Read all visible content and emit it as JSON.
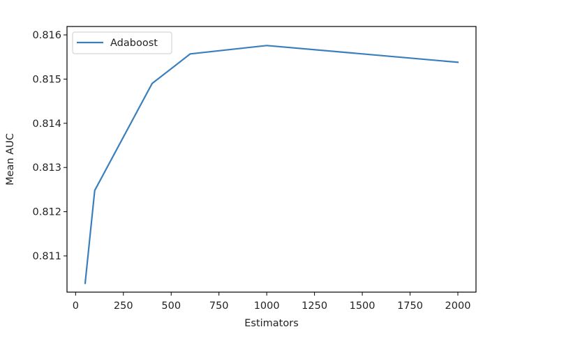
{
  "chart_data": {
    "type": "line",
    "title": "",
    "xlabel": "Estimators",
    "ylabel": "Mean AUC",
    "xlim": [
      -45,
      2095
    ],
    "ylim": [
      0.81018,
      0.81619
    ],
    "xticks": [
      0,
      250,
      500,
      750,
      1000,
      1250,
      1500,
      1750,
      2000
    ],
    "xtick_labels": [
      "0",
      "250",
      "500",
      "750",
      "1000",
      "1250",
      "1500",
      "1750",
      "2000"
    ],
    "yticks": [
      0.811,
      0.812,
      0.813,
      0.814,
      0.815,
      0.816
    ],
    "ytick_labels": [
      "0.811",
      "0.812",
      "0.813",
      "0.814",
      "0.815",
      "0.816"
    ],
    "grid": false,
    "legend_position": "top-left",
    "series": [
      {
        "name": "Adaboost",
        "color": "#3a7fbd",
        "x": [
          50,
          100,
          400,
          600,
          1000,
          2000
        ],
        "y": [
          0.81038,
          0.81248,
          0.8149,
          0.81557,
          0.81576,
          0.81538
        ]
      }
    ]
  }
}
